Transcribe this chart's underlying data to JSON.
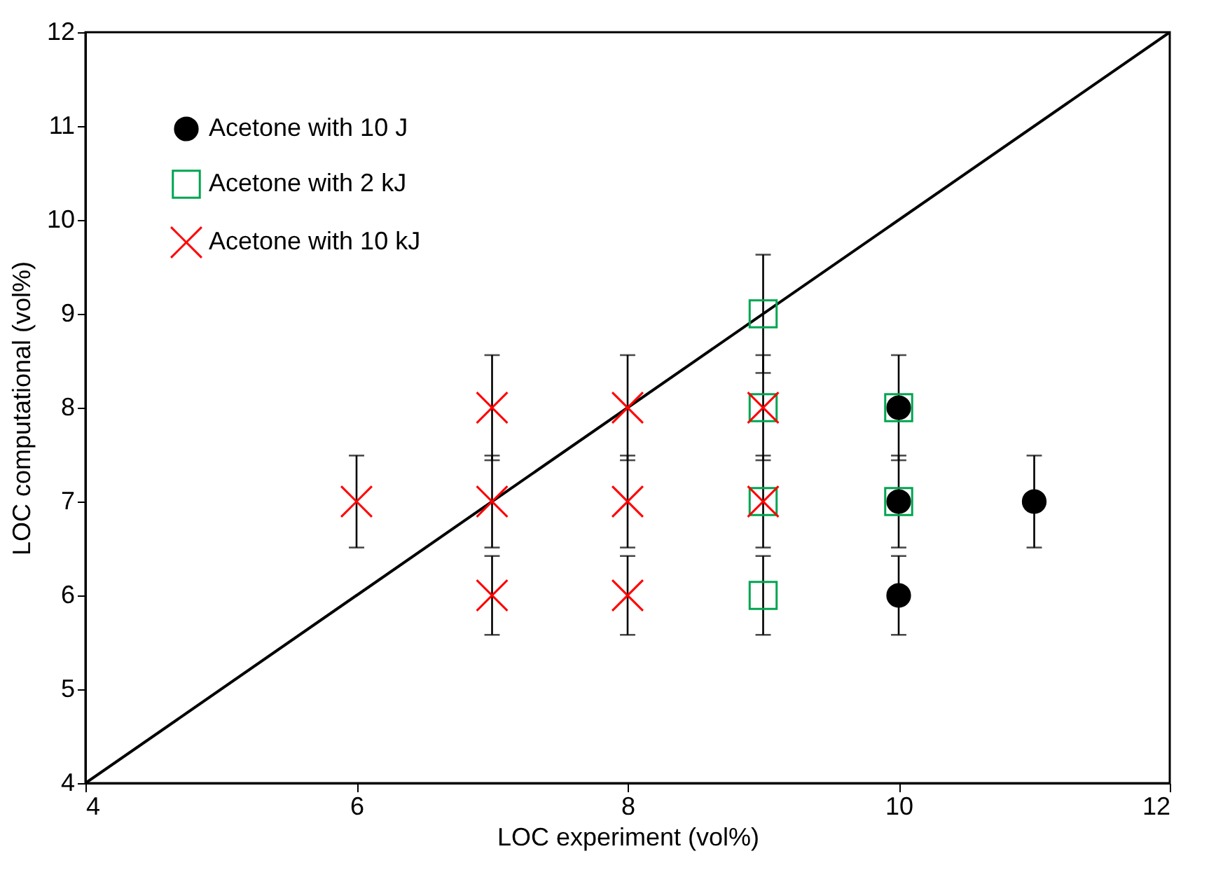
{
  "chart_data": {
    "type": "scatter",
    "xlabel": "LOC experiment (vol%)",
    "ylabel": "LOC computational (vol%)",
    "xlim": [
      4,
      12
    ],
    "xticks": [
      4,
      6,
      8,
      10,
      12
    ],
    "ylim": [
      4,
      12
    ],
    "yticks": [
      4,
      5,
      6,
      7,
      8,
      9,
      10,
      11,
      12
    ],
    "grid": false,
    "legend": "top left",
    "series": [
      {
        "name": "Acetone with 10 J",
        "marker": "circle",
        "color": "#000000",
        "x": [
          10,
          10,
          10,
          11
        ],
        "values": [
          8,
          7,
          6,
          7
        ],
        "errors": [
          0.56,
          0.49,
          0.42,
          0.49
        ]
      },
      {
        "name": "Acetone with 2 kJ",
        "marker": "square",
        "color": "#00a550",
        "x": [
          9,
          9,
          9,
          9,
          10,
          10
        ],
        "values": [
          9,
          8,
          7,
          6,
          8,
          7
        ],
        "errors": [
          0.63,
          null,
          null,
          0.42,
          null,
          null
        ]
      },
      {
        "name": "Acetone with 10 kJ",
        "marker": "cross",
        "color": "#ff0000",
        "x": [
          6,
          7,
          7,
          7,
          8,
          8,
          8,
          9,
          9
        ],
        "values": [
          7,
          8,
          7,
          6,
          8,
          7,
          6,
          8,
          7
        ],
        "errors": [
          0.49,
          0.56,
          0.49,
          0.42,
          0.56,
          0.49,
          0.42,
          0.56,
          0.49
        ]
      },
      {
        "type": "line",
        "color": "#000000",
        "x": [
          4,
          12
        ],
        "values": [
          4,
          12
        ]
      }
    ]
  }
}
